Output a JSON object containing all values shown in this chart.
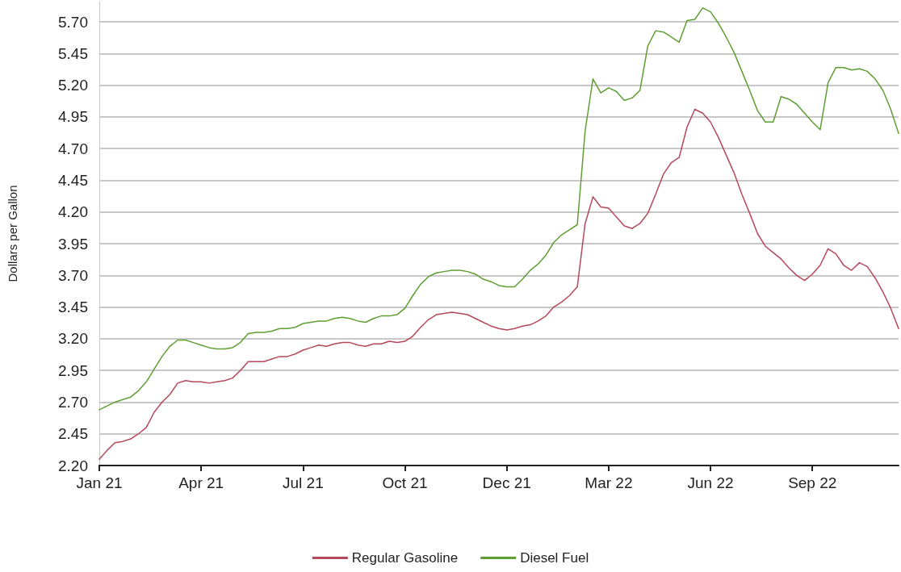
{
  "chart_data": {
    "type": "line",
    "ylabel": "Dollars per Gallon",
    "categories": [
      "Jan 21",
      null,
      null,
      null,
      null,
      null,
      null,
      null,
      null,
      null,
      null,
      null,
      null,
      "Apr 21",
      null,
      null,
      null,
      null,
      null,
      null,
      null,
      null,
      null,
      null,
      null,
      null,
      "Jul 21",
      null,
      null,
      null,
      null,
      null,
      null,
      null,
      null,
      null,
      null,
      null,
      null,
      "Oct 21",
      null,
      null,
      null,
      null,
      null,
      null,
      null,
      null,
      null,
      null,
      null,
      null,
      "Dec 21",
      null,
      null,
      null,
      null,
      null,
      null,
      null,
      null,
      null,
      null,
      null,
      null,
      "Mar 22",
      null,
      null,
      null,
      null,
      null,
      null,
      null,
      null,
      null,
      null,
      null,
      null,
      "Jun 22",
      null,
      null,
      null,
      null,
      null,
      null,
      null,
      null,
      null,
      null,
      null,
      null,
      "Sep 22",
      null,
      null,
      null,
      null,
      null,
      null,
      null,
      null,
      null,
      null,
      null
    ],
    "series": [
      {
        "name": "Regular Gasoline",
        "color": "#b5485a",
        "values": [
          2.25,
          2.32,
          2.38,
          2.39,
          2.41,
          2.45,
          2.5,
          2.62,
          2.7,
          2.76,
          2.85,
          2.87,
          2.86,
          2.86,
          2.85,
          2.86,
          2.87,
          2.89,
          2.95,
          3.02,
          3.02,
          3.02,
          3.04,
          3.06,
          3.06,
          3.08,
          3.11,
          3.13,
          3.15,
          3.14,
          3.16,
          3.17,
          3.17,
          3.15,
          3.14,
          3.16,
          3.16,
          3.18,
          3.17,
          3.18,
          3.22,
          3.29,
          3.35,
          3.39,
          3.4,
          3.41,
          3.4,
          3.39,
          3.36,
          3.33,
          3.3,
          3.28,
          3.27,
          3.28,
          3.3,
          3.31,
          3.34,
          3.38,
          3.45,
          3.49,
          3.54,
          3.61,
          4.11,
          4.32,
          4.24,
          4.23,
          4.16,
          4.09,
          4.07,
          4.11,
          4.19,
          4.34,
          4.5,
          4.59,
          4.63,
          4.87,
          5.01,
          4.98,
          4.91,
          4.79,
          4.65,
          4.51,
          4.34,
          4.19,
          4.03,
          3.93,
          3.88,
          3.83,
          3.76,
          3.7,
          3.66,
          3.71,
          3.78,
          3.91,
          3.87,
          3.78,
          3.74,
          3.8,
          3.77,
          3.68,
          3.57,
          3.44,
          3.28
        ]
      },
      {
        "name": "Diesel Fuel",
        "color": "#5e9e33",
        "values": [
          2.64,
          2.67,
          2.7,
          2.72,
          2.74,
          2.79,
          2.86,
          2.96,
          3.06,
          3.14,
          3.19,
          3.19,
          3.17,
          3.15,
          3.13,
          3.12,
          3.12,
          3.13,
          3.17,
          3.24,
          3.25,
          3.25,
          3.26,
          3.28,
          3.28,
          3.29,
          3.32,
          3.33,
          3.34,
          3.34,
          3.36,
          3.37,
          3.36,
          3.34,
          3.33,
          3.36,
          3.38,
          3.38,
          3.39,
          3.44,
          3.54,
          3.63,
          3.69,
          3.72,
          3.73,
          3.74,
          3.74,
          3.73,
          3.71,
          3.67,
          3.65,
          3.62,
          3.61,
          3.61,
          3.67,
          3.74,
          3.79,
          3.86,
          3.96,
          4.02,
          4.06,
          4.1,
          4.84,
          5.25,
          5.14,
          5.18,
          5.15,
          5.08,
          5.1,
          5.16,
          5.51,
          5.63,
          5.62,
          5.58,
          5.54,
          5.71,
          5.72,
          5.81,
          5.78,
          5.69,
          5.58,
          5.46,
          5.31,
          5.16,
          5.0,
          4.91,
          4.91,
          5.11,
          5.09,
          5.05,
          4.98,
          4.91,
          4.85,
          5.22,
          5.34,
          5.34,
          5.32,
          5.33,
          5.31,
          5.25,
          5.16,
          5.01,
          4.82
        ]
      }
    ],
    "ylim": [
      2.2,
      5.86
    ],
    "yticks": [
      {
        "value": 2.2,
        "label": "2.20"
      },
      {
        "value": 2.45,
        "label": "2.45"
      },
      {
        "value": 2.7,
        "label": "2.70"
      },
      {
        "value": 2.95,
        "label": "2.95"
      },
      {
        "value": 3.2,
        "label": "3.20"
      },
      {
        "value": 3.45,
        "label": "3.45"
      },
      {
        "value": 3.7,
        "label": "3.70"
      },
      {
        "value": 3.95,
        "label": "3.95"
      },
      {
        "value": 4.2,
        "label": "4.20"
      },
      {
        "value": 4.45,
        "label": "4.45"
      },
      {
        "value": 4.7,
        "label": "4.70"
      },
      {
        "value": 4.95,
        "label": "4.95"
      },
      {
        "value": 5.2,
        "label": "5.20"
      },
      {
        "value": 5.45,
        "label": "5.45"
      },
      {
        "value": 5.7,
        "label": "5.70"
      }
    ],
    "grid": "y",
    "legend": "bottom",
    "marker": "none",
    "line_style": "solid"
  }
}
